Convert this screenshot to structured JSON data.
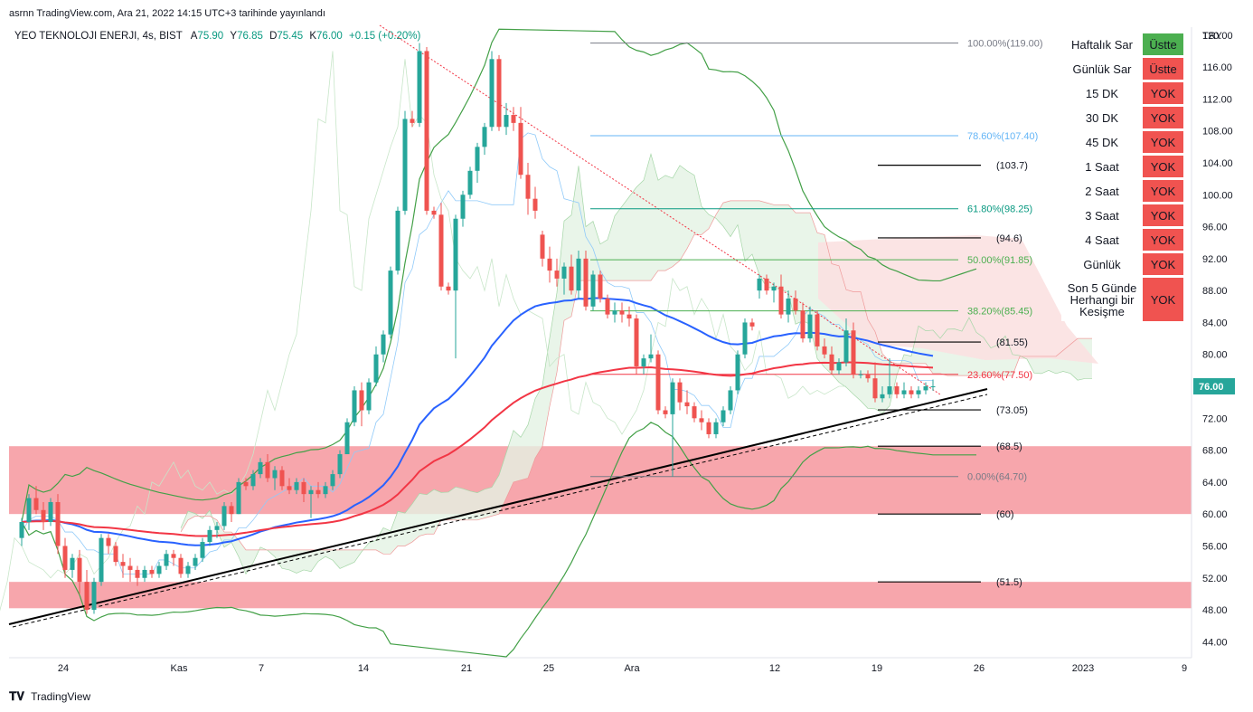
{
  "header": {
    "publisher": "asrnn TradingView.com, Ara 21, 2022 14:15 UTC+3 tarihinde yayınlandı"
  },
  "symbol": {
    "name": "YEO TEKNOLOJI ENERJI, 4s, BIST",
    "a_label": "A",
    "a_value": "75.90",
    "y_label": "Y",
    "y_value": "76.85",
    "d_label": "D",
    "d_value": "75.45",
    "k_label": "K",
    "k_value": "76.00",
    "change": "+0.15 (+0.20%)"
  },
  "footer": {
    "brand": "TradingView"
  },
  "price_axis": {
    "unit": "TRY",
    "last_price": "76.00"
  },
  "status_table": {
    "rows": [
      {
        "label": "Haftalık Sar",
        "value": "Üstte",
        "color": "#4caf50"
      },
      {
        "label": "Günlük Sar",
        "value": "Üstte",
        "color": "#f05350"
      },
      {
        "label": "15 DK",
        "value": "YOK",
        "color": "#f05350"
      },
      {
        "label": "30 DK",
        "value": "YOK",
        "color": "#f05350"
      },
      {
        "label": "45 DK",
        "value": "YOK",
        "color": "#f05350"
      },
      {
        "label": "1 Saat",
        "value": "YOK",
        "color": "#f05350"
      },
      {
        "label": "2 Saat",
        "value": "YOK",
        "color": "#f05350"
      },
      {
        "label": "3 Saat",
        "value": "YOK",
        "color": "#f05350"
      },
      {
        "label": "4 Saat",
        "value": "YOK",
        "color": "#f05350"
      },
      {
        "label": "Günlük",
        "value": "YOK",
        "color": "#f05350"
      },
      {
        "label": "Son 5 Günde Herhangi bir Kesişme",
        "value": "YOK",
        "color": "#f05350"
      }
    ]
  },
  "colors": {
    "bull": "#26a69a",
    "bear": "#ef5350",
    "ema_blue": "#2962ff",
    "ema_red": "#f23645",
    "bb_green": "#43a047",
    "zone": "#f7a1a8",
    "cloud_green": "#e3f2e3",
    "cloud_red": "#fbe1e1"
  },
  "chart_data": {
    "type": "candlestick",
    "y_axis": {
      "min": 42,
      "max": 121,
      "ticks": [
        "120.00",
        "116.00",
        "112.00",
        "108.00",
        "104.00",
        "100.00",
        "96.00",
        "92.00",
        "88.00",
        "84.00",
        "80.00",
        "76.00",
        "72.00",
        "68.00",
        "64.00",
        "60.00",
        "56.00",
        "52.00",
        "48.00",
        "44.00"
      ]
    },
    "x_axis": {
      "ticks": [
        "24",
        "Kas",
        "7",
        "14",
        "21",
        "25",
        "Ara",
        "12",
        "19",
        "26",
        "2023",
        "9"
      ]
    },
    "candles": [
      [
        57.0,
        59.5,
        56.0,
        59.0
      ],
      [
        59.0,
        62.5,
        58.0,
        62.0
      ],
      [
        62.0,
        63.5,
        60.0,
        60.5
      ],
      [
        60.5,
        61.5,
        58.0,
        59.0
      ],
      [
        59.0,
        62.0,
        58.5,
        61.5
      ],
      [
        61.5,
        62.5,
        55.0,
        56.0
      ],
      [
        56.0,
        57.0,
        52.0,
        53.0
      ],
      [
        53.0,
        55.0,
        52.0,
        54.5
      ],
      [
        54.5,
        55.5,
        50.0,
        51.5
      ],
      [
        51.5,
        53.0,
        47.5,
        48.0
      ],
      [
        48.0,
        52.0,
        47.5,
        51.5
      ],
      [
        51.5,
        57.5,
        51.0,
        57.0
      ],
      [
        57.0,
        57.5,
        55.0,
        56.0
      ],
      [
        56.0,
        56.5,
        53.5,
        54.0
      ],
      [
        54.0,
        55.0,
        52.0,
        53.5
      ],
      [
        53.5,
        54.5,
        51.5,
        53.0
      ],
      [
        53.0,
        53.5,
        51.0,
        52.0
      ],
      [
        52.0,
        53.5,
        51.5,
        53.0
      ],
      [
        53.0,
        53.5,
        52.0,
        52.5
      ],
      [
        52.5,
        54.0,
        52.0,
        53.5
      ],
      [
        53.5,
        55.5,
        53.0,
        55.0
      ],
      [
        55.0,
        55.5,
        53.5,
        54.5
      ],
      [
        54.5,
        55.0,
        52.0,
        52.5
      ],
      [
        52.5,
        54.0,
        52.0,
        53.5
      ],
      [
        53.5,
        55.0,
        53.0,
        54.5
      ],
      [
        54.5,
        57.0,
        54.0,
        56.5
      ],
      [
        56.5,
        58.5,
        56.0,
        58.0
      ],
      [
        58.0,
        59.0,
        57.0,
        58.5
      ],
      [
        58.5,
        61.5,
        58.0,
        61.0
      ],
      [
        61.0,
        61.5,
        59.0,
        60.0
      ],
      [
        60.0,
        64.5,
        60.0,
        64.0
      ],
      [
        64.0,
        64.5,
        63.0,
        63.5
      ],
      [
        63.5,
        65.5,
        63.0,
        65.0
      ],
      [
        65.0,
        67.0,
        64.5,
        66.5
      ],
      [
        66.5,
        67.5,
        64.0,
        64.5
      ],
      [
        64.5,
        66.0,
        63.0,
        65.5
      ],
      [
        65.5,
        66.0,
        63.0,
        63.5
      ],
      [
        63.5,
        64.5,
        62.5,
        63.0
      ],
      [
        63.0,
        64.5,
        62.5,
        64.0
      ],
      [
        64.0,
        64.5,
        61.5,
        62.5
      ],
      [
        62.5,
        63.5,
        59.5,
        63.0
      ],
      [
        63.0,
        64.0,
        62.0,
        62.5
      ],
      [
        62.5,
        64.0,
        62.0,
        63.5
      ],
      [
        63.5,
        65.5,
        63.0,
        65.0
      ],
      [
        65.0,
        68.0,
        64.5,
        67.5
      ],
      [
        67.5,
        72.0,
        67.5,
        71.5
      ],
      [
        71.5,
        76.0,
        71.0,
        75.5
      ],
      [
        75.5,
        76.5,
        71.0,
        73.0
      ],
      [
        73.0,
        77.0,
        72.5,
        76.5
      ],
      [
        76.5,
        81.0,
        76.0,
        80.0
      ],
      [
        80.0,
        83.0,
        79.0,
        82.5
      ],
      [
        82.5,
        91.0,
        82.0,
        90.5
      ],
      [
        90.5,
        98.5,
        90.0,
        98.0
      ],
      [
        98.0,
        110.5,
        97.5,
        109.5
      ],
      [
        109.5,
        110.5,
        108.5,
        109.0
      ],
      [
        109.0,
        119.0,
        108.5,
        118.0
      ],
      [
        118.0,
        118.5,
        97.5,
        98.0
      ],
      [
        98.0,
        98.5,
        97.0,
        97.5
      ],
      [
        97.5,
        99.0,
        88.0,
        88.5
      ],
      [
        88.5,
        89.0,
        87.5,
        88.0
      ],
      [
        88.0,
        97.5,
        79.5,
        97.0
      ],
      [
        97.0,
        100.5,
        96.0,
        100.0
      ],
      [
        100.0,
        103.5,
        99.5,
        103.0
      ],
      [
        103.0,
        106.5,
        101.5,
        106.0
      ],
      [
        106.0,
        109.0,
        105.0,
        108.5
      ],
      [
        108.5,
        118.0,
        108.0,
        117.0
      ],
      [
        117.0,
        117.5,
        108.0,
        108.5
      ],
      [
        108.5,
        111.5,
        107.5,
        110.0
      ],
      [
        110.0,
        111.0,
        108.0,
        109.0
      ],
      [
        109.0,
        111.0,
        102.0,
        102.5
      ],
      [
        102.5,
        104.0,
        97.5,
        99.5
      ],
      [
        99.5,
        101.0,
        97.0,
        98.0
      ],
      [
        95.0,
        95.5,
        91.0,
        92.0
      ],
      [
        92.0,
        93.5,
        89.0,
        90.5
      ],
      [
        90.5,
        92.0,
        88.5,
        89.5
      ],
      [
        89.5,
        91.5,
        87.5,
        91.0
      ],
      [
        91.0,
        92.5,
        87.5,
        88.0
      ],
      [
        88.0,
        93.0,
        87.0,
        92.0
      ],
      [
        92.0,
        93.0,
        85.5,
        86.0
      ],
      [
        86.0,
        90.5,
        85.5,
        90.0
      ],
      [
        90.0,
        90.5,
        86.5,
        87.0
      ],
      [
        87.0,
        87.5,
        84.5,
        85.0
      ],
      [
        85.0,
        86.5,
        84.0,
        85.5
      ],
      [
        85.5,
        86.5,
        84.0,
        85.0
      ],
      [
        85.0,
        86.0,
        83.5,
        84.5
      ],
      [
        84.5,
        85.0,
        77.5,
        78.5
      ],
      [
        78.5,
        80.0,
        77.5,
        79.5
      ],
      [
        79.5,
        82.5,
        79.0,
        80.0
      ],
      [
        80.0,
        80.5,
        72.5,
        73.0
      ],
      [
        73.0,
        73.5,
        72.0,
        72.5
      ],
      [
        72.5,
        77.0,
        64.7,
        76.5
      ],
      [
        76.5,
        77.0,
        73.0,
        74.0
      ],
      [
        74.0,
        75.5,
        72.5,
        73.5
      ],
      [
        73.5,
        74.0,
        71.5,
        72.0
      ],
      [
        72.0,
        73.0,
        70.5,
        71.5
      ],
      [
        71.5,
        72.0,
        69.5,
        70.0
      ],
      [
        70.0,
        72.0,
        69.5,
        71.5
      ],
      [
        71.5,
        73.5,
        71.0,
        73.0
      ],
      [
        73.0,
        76.0,
        72.5,
        75.5
      ],
      [
        75.5,
        80.5,
        75.0,
        80.0
      ],
      [
        80.0,
        84.5,
        79.5,
        84.0
      ],
      [
        84.0,
        84.5,
        83.0,
        83.5
      ],
      [
        88.0,
        90.0,
        87.0,
        89.5
      ],
      [
        89.5,
        90.0,
        87.5,
        88.0
      ],
      [
        88.0,
        89.0,
        86.5,
        88.5
      ],
      [
        88.5,
        90.0,
        84.5,
        85.0
      ],
      [
        85.0,
        88.0,
        84.0,
        87.0
      ],
      [
        87.0,
        88.0,
        85.0,
        85.5
      ],
      [
        85.5,
        86.5,
        81.5,
        82.0
      ],
      [
        82.0,
        86.0,
        81.5,
        85.0
      ],
      [
        85.0,
        85.5,
        80.5,
        81.0
      ],
      [
        81.0,
        82.0,
        79.5,
        80.0
      ],
      [
        80.0,
        81.0,
        77.5,
        78.0
      ],
      [
        78.0,
        79.5,
        77.5,
        79.0
      ],
      [
        79.0,
        84.5,
        78.5,
        83.0
      ],
      [
        83.0,
        84.0,
        77.0,
        77.5
      ],
      [
        77.5,
        78.0,
        77.0,
        77.5
      ],
      [
        77.5,
        78.0,
        76.5,
        77.0
      ],
      [
        77.0,
        79.0,
        74.0,
        74.5
      ],
      [
        74.5,
        76.0,
        74.0,
        75.0
      ],
      [
        75.0,
        79.5,
        74.5,
        76.0
      ],
      [
        76.0,
        76.5,
        74.5,
        75.0
      ],
      [
        75.0,
        76.5,
        74.5,
        75.5
      ],
      [
        75.5,
        76.0,
        74.5,
        75.0
      ],
      [
        75.0,
        76.0,
        74.5,
        75.5
      ],
      [
        75.5,
        76.5,
        75.0,
        76.0
      ],
      [
        75.9,
        76.85,
        75.45,
        76.0
      ]
    ],
    "fib_levels": [
      {
        "label": "100.00%(119.00)",
        "price": 119.0,
        "color": "#787b86"
      },
      {
        "label": "78.60%(107.40)",
        "price": 107.4,
        "color": "#64b5f6"
      },
      {
        "label": "61.80%(98.25)",
        "price": 98.25,
        "color": "#089981"
      },
      {
        "label": "50.00%(91.85)",
        "price": 91.85,
        "color": "#4caf50"
      },
      {
        "label": "38.20%(85.45)",
        "price": 85.45,
        "color": "#4caf50"
      },
      {
        "label": "23.60%(77.50)",
        "price": 77.5,
        "color": "#f23645"
      },
      {
        "label": "0.00%(64.70)",
        "price": 64.7,
        "color": "#787b86"
      }
    ],
    "levels": [
      {
        "label": "(103.7)",
        "price": 103.7
      },
      {
        "label": "(94.6)",
        "price": 94.6
      },
      {
        "label": "(81.55)",
        "price": 81.55
      },
      {
        "label": "(73.05)",
        "price": 73.05
      },
      {
        "label": "(68.5)",
        "price": 68.5
      },
      {
        "label": "(60)",
        "price": 60.0
      },
      {
        "label": "(51.5)",
        "price": 51.5
      }
    ],
    "zones": [
      {
        "from": 60.0,
        "to": 68.5
      },
      {
        "from": 48.2,
        "to": 51.5
      }
    ]
  }
}
